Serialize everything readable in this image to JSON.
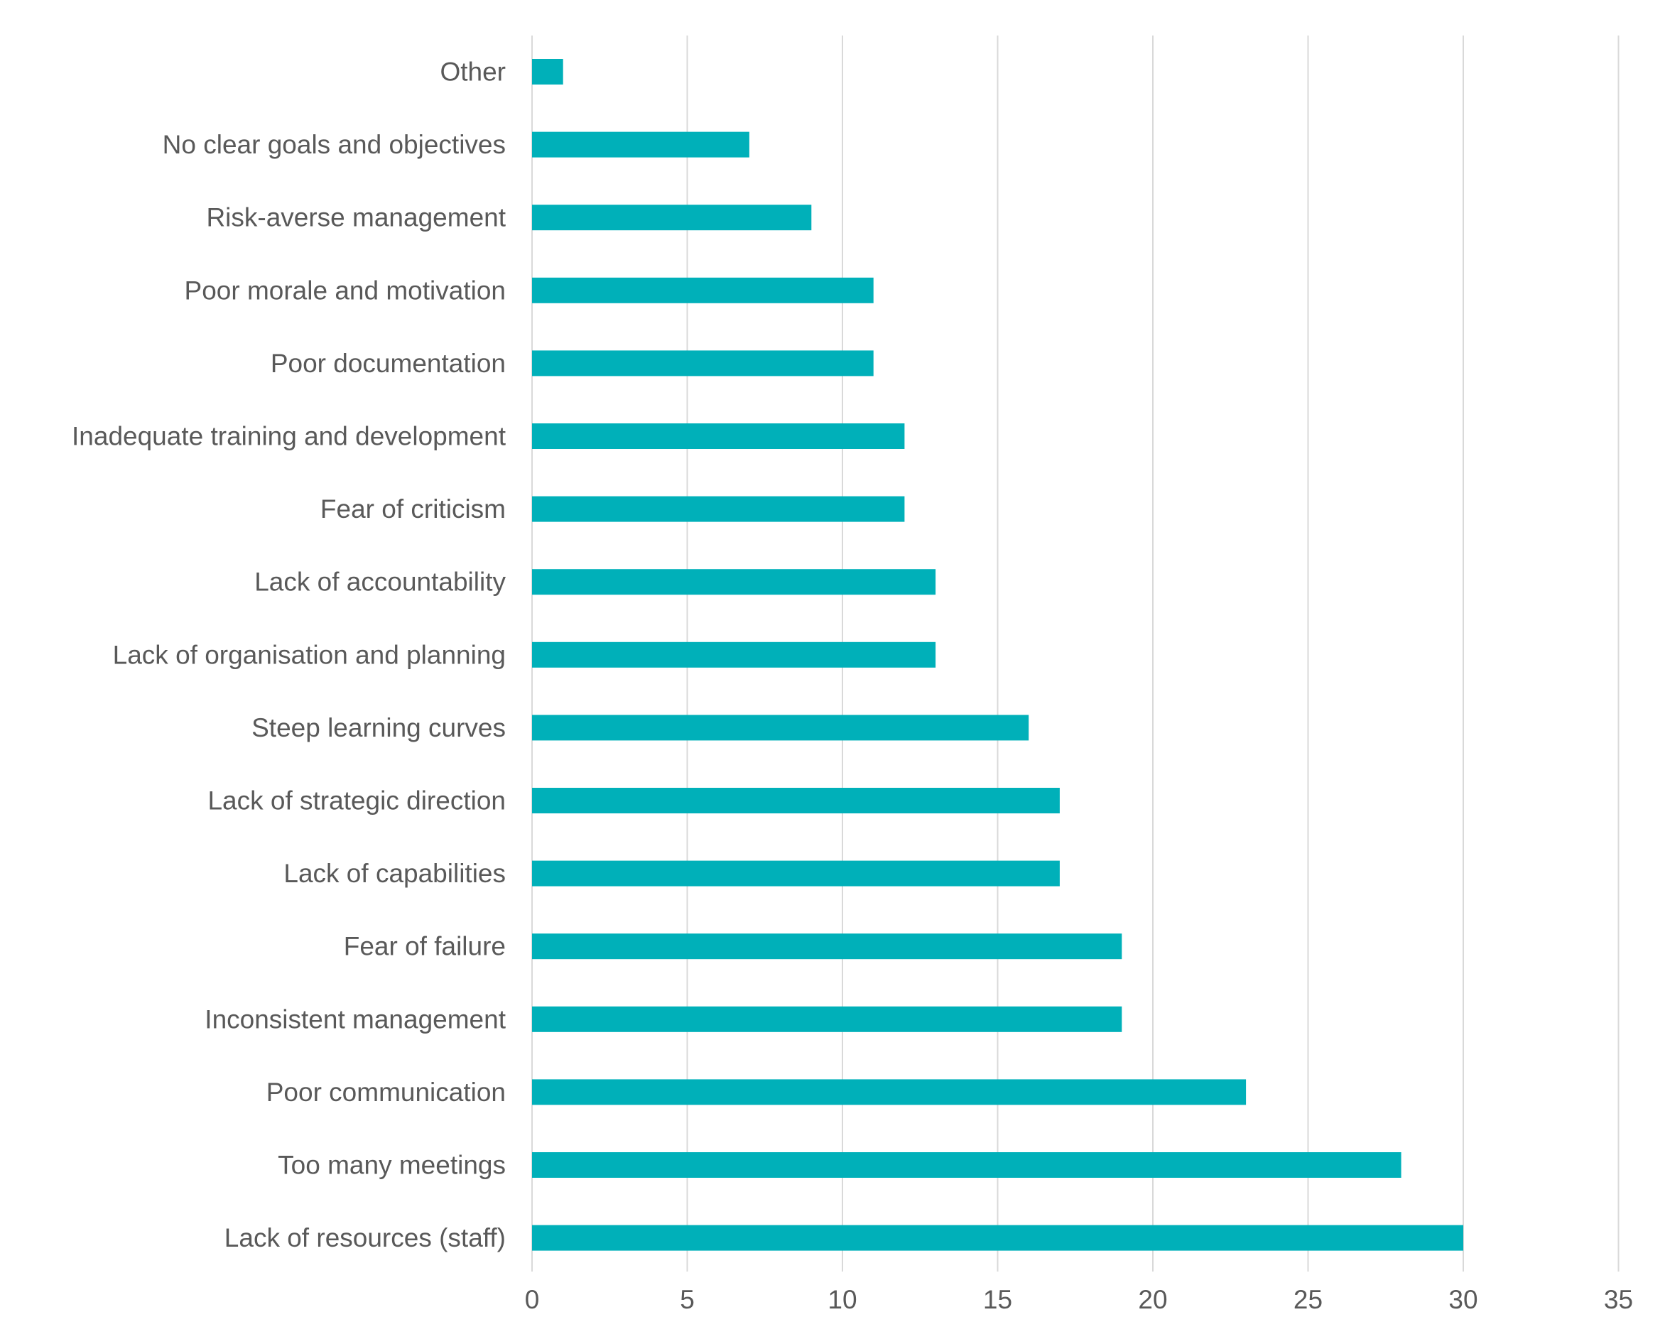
{
  "chart_data": {
    "type": "bar",
    "orientation": "horizontal",
    "title": "",
    "xlabel": "",
    "ylabel": "",
    "xlim": [
      0,
      35
    ],
    "xticks": [
      "0",
      "5",
      "10",
      "15",
      "20",
      "25",
      "30",
      "35"
    ],
    "grid": "vertical",
    "legend": "none",
    "categories": [
      "Other",
      "No clear goals and objectives",
      "Risk-averse management",
      "Poor morale and motivation",
      "Poor documentation",
      "Inadequate training and development",
      "Fear of criticism",
      "Lack of accountability",
      "Lack of organisation and planning",
      "Steep learning curves",
      "Lack of strategic direction",
      "Lack of capabilities",
      "Fear of failure",
      "Inconsistent management",
      "Poor communication",
      "Too many meetings",
      "Lack of resources (staff)"
    ],
    "values": [
      1,
      7,
      9,
      11,
      11,
      12,
      12,
      13,
      13,
      16,
      17,
      17,
      19,
      19,
      23,
      28,
      30
    ],
    "colors": {
      "bar": "#00b0b9",
      "grid": "#d9d9d9",
      "text": "#595959"
    }
  }
}
